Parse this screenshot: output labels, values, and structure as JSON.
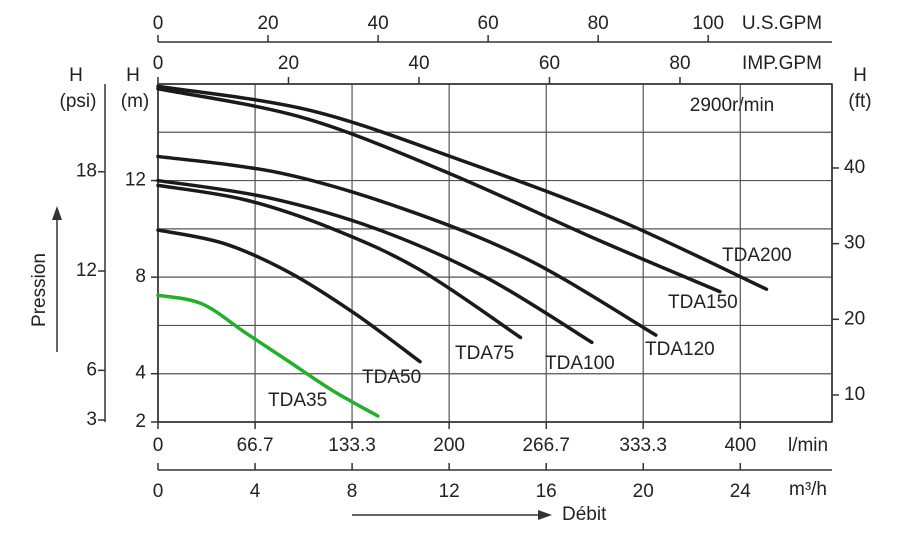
{
  "chart_data": {
    "type": "line",
    "annotation": "2900r/min",
    "x_title": "Débit",
    "y_title": "Pression",
    "x_label": "l/min",
    "xlim": [
      0,
      463
    ],
    "xticks": [
      0,
      66.7,
      133.3,
      200,
      266.7,
      333.3,
      400
    ],
    "y_label": "H",
    "y_unit": "(m)",
    "ylim": [
      2,
      16
    ],
    "yticks": [
      2,
      4,
      8,
      12
    ],
    "ygrid": [
      4,
      6,
      8,
      10,
      12,
      14
    ],
    "grid": true,
    "m3h_axis": {
      "label": "m³/h",
      "lim": [
        0,
        27.78
      ],
      "ticks": [
        0,
        4,
        8,
        12,
        16,
        20,
        24
      ]
    },
    "usgpm_axis": {
      "label": "U.S.GPM",
      "lim": [
        0,
        122.5
      ],
      "ticks": [
        0,
        20,
        40,
        60,
        80,
        100
      ]
    },
    "impgpm_axis": {
      "label": "IMP.GPM",
      "lim": [
        0,
        103.3
      ],
      "ticks": [
        0,
        20,
        40,
        60,
        80
      ]
    },
    "psi_axis": {
      "label": "H",
      "unit": "(psi)",
      "lim": [
        2.88,
        23.3
      ],
      "ticks": [
        3,
        6,
        12,
        18
      ]
    },
    "ft_axis": {
      "label": "H",
      "unit": "(ft)",
      "lim": [
        6.43,
        51.1
      ],
      "ticks": [
        10,
        20,
        30,
        40
      ]
    },
    "series": [
      {
        "name": "TDA35",
        "color": "#22b02a",
        "x": [
          0,
          30,
          60,
          90,
          120,
          151
        ],
        "values": [
          7.25,
          6.9,
          5.7,
          4.5,
          3.3,
          2.25
        ]
      },
      {
        "name": "TDA50",
        "color": "#1a1a1a",
        "x": [
          0,
          45,
          90,
          135,
          180
        ],
        "values": [
          9.95,
          9.4,
          8.2,
          6.5,
          4.5
        ]
      },
      {
        "name": "TDA75",
        "color": "#1a1a1a",
        "x": [
          0,
          60,
          120,
          180,
          249
        ],
        "values": [
          11.8,
          11.2,
          10,
          8.3,
          5.5
        ]
      },
      {
        "name": "TDA100",
        "color": "#1a1a1a",
        "x": [
          0,
          75,
          150,
          225,
          298
        ],
        "values": [
          12,
          11.3,
          10,
          8,
          5.3
        ]
      },
      {
        "name": "TDA120",
        "color": "#1a1a1a",
        "x": [
          0,
          85,
          170,
          255,
          342
        ],
        "values": [
          13,
          12.3,
          10.8,
          8.7,
          5.6
        ]
      },
      {
        "name": "TDA150",
        "color": "#1a1a1a",
        "x": [
          0,
          100,
          200,
          300,
          386
        ],
        "values": [
          15.8,
          14.6,
          12.3,
          9.6,
          7.4
        ]
      },
      {
        "name": "TDA200",
        "color": "#1a1a1a",
        "x": [
          0,
          105,
          210,
          315,
          418
        ],
        "values": [
          15.9,
          14.9,
          12.8,
          10.4,
          7.5
        ]
      }
    ]
  }
}
